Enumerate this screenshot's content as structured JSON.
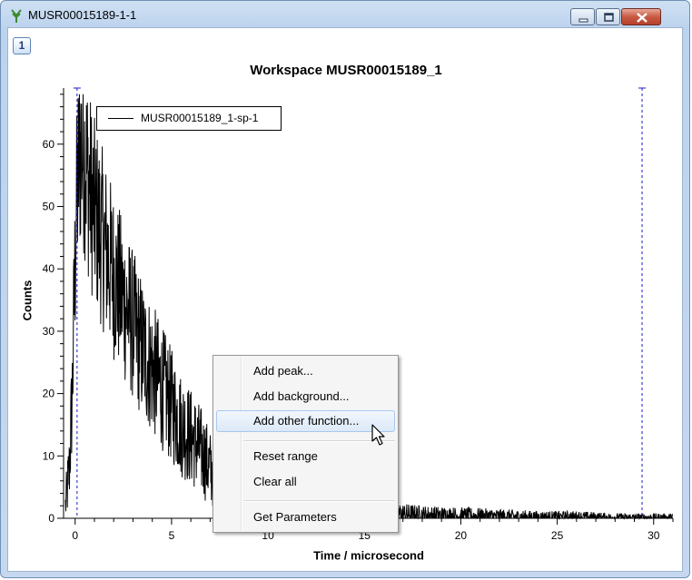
{
  "window": {
    "title": "MUSR00015189-1-1",
    "tab_label": "1"
  },
  "plot": {
    "title": "Workspace MUSR00015189_1",
    "legend_label": "MUSR00015189_1-sp-1"
  },
  "context_menu": {
    "items": [
      {
        "label": "Add peak..."
      },
      {
        "label": "Add background..."
      },
      {
        "label": "Add other function..."
      },
      {
        "label": "Reset range"
      },
      {
        "label": "Clear all"
      },
      {
        "label": "Get Parameters"
      }
    ],
    "highlighted": "Add other function..."
  },
  "chart_data": {
    "type": "line",
    "title": "Workspace MUSR00015189_1",
    "xlabel": "Time / microsecond",
    "ylabel": "Counts",
    "xlim": [
      -0.6,
      31
    ],
    "ylim": [
      0,
      69
    ],
    "xticks": [
      0,
      5,
      10,
      15,
      20,
      25,
      30
    ],
    "yticks": [
      0,
      10,
      20,
      30,
      40,
      50,
      60
    ],
    "grid": false,
    "legend_placement": "top-left",
    "series": [
      {
        "name": "MUSR00015189_1-sp-1",
        "color": "#000000",
        "x": [
          -0.5,
          -0.3,
          -0.15,
          -0.05,
          0.05,
          0.15,
          0.3,
          0.5,
          0.75,
          1,
          1.5,
          2,
          2.5,
          3,
          3.5,
          4,
          4.5,
          5,
          5.5,
          6,
          6.5,
          7,
          8,
          9,
          10,
          11,
          12,
          14,
          16,
          18,
          20,
          22,
          24,
          26,
          28,
          30,
          31
        ],
        "y": [
          2,
          8,
          20,
          35,
          48,
          55,
          60,
          58,
          53,
          49,
          44,
          39,
          35,
          31,
          27,
          24,
          21,
          18,
          15,
          13,
          11,
          8,
          6,
          5,
          3.5,
          2.5,
          1.8,
          1.2,
          0.8,
          0.5,
          0.4,
          0.3,
          0.2,
          0.2,
          0.1,
          0.1,
          0.1
        ]
      }
    ],
    "range_markers": [
      0.1,
      29.4
    ]
  },
  "colors": {
    "range_marker": "#1a1ac8",
    "menu_highlight": "#dce9f8",
    "window_frame": "#bcd3ee"
  },
  "icons": [
    "app-icon",
    "minimize-icon",
    "maximize-icon",
    "close-icon",
    "mouse-cursor-icon"
  ]
}
